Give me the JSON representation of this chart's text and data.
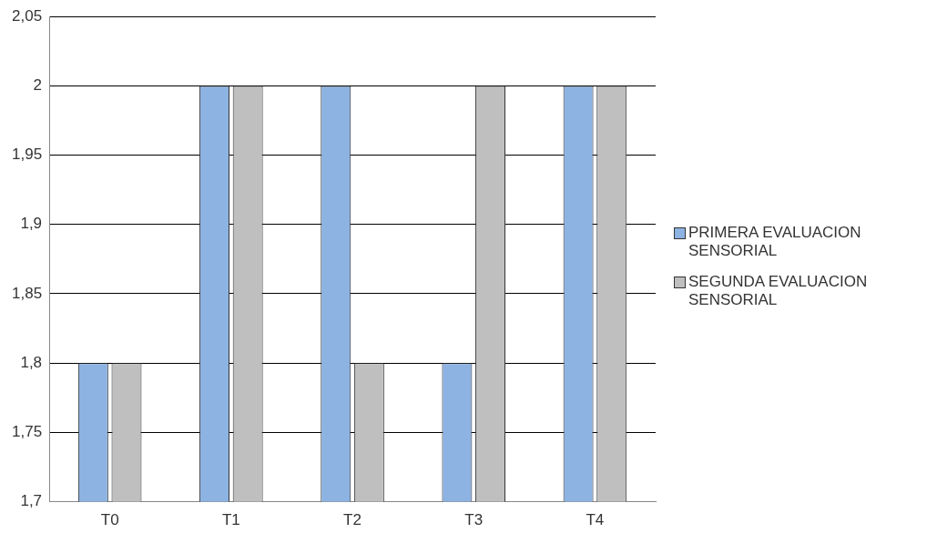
{
  "chart_data": {
    "type": "bar",
    "categories": [
      "T0",
      "T1",
      "T2",
      "T3",
      "T4"
    ],
    "series": [
      {
        "name": "PRIMERA EVALUACION SENSORIAL",
        "color": "#8db3e2",
        "values": [
          1.8,
          2,
          2,
          1.8,
          2
        ]
      },
      {
        "name": "SEGUNDA EVALUACION SENSORIAL",
        "color": "#bfbfbf",
        "values": [
          1.8,
          2,
          1.8,
          2,
          2
        ]
      }
    ],
    "ylim": [
      1.7,
      2.05
    ],
    "yticks": [
      {
        "value": 1.7,
        "label": "1,7"
      },
      {
        "value": 1.75,
        "label": "1,75"
      },
      {
        "value": 1.8,
        "label": "1,8"
      },
      {
        "value": 1.85,
        "label": "1,85"
      },
      {
        "value": 1.9,
        "label": "1,9"
      },
      {
        "value": 1.95,
        "label": "1,95"
      },
      {
        "value": 2,
        "label": "2"
      },
      {
        "value": 2.05,
        "label": "2,05"
      }
    ],
    "grid": "y",
    "legend": "right"
  }
}
